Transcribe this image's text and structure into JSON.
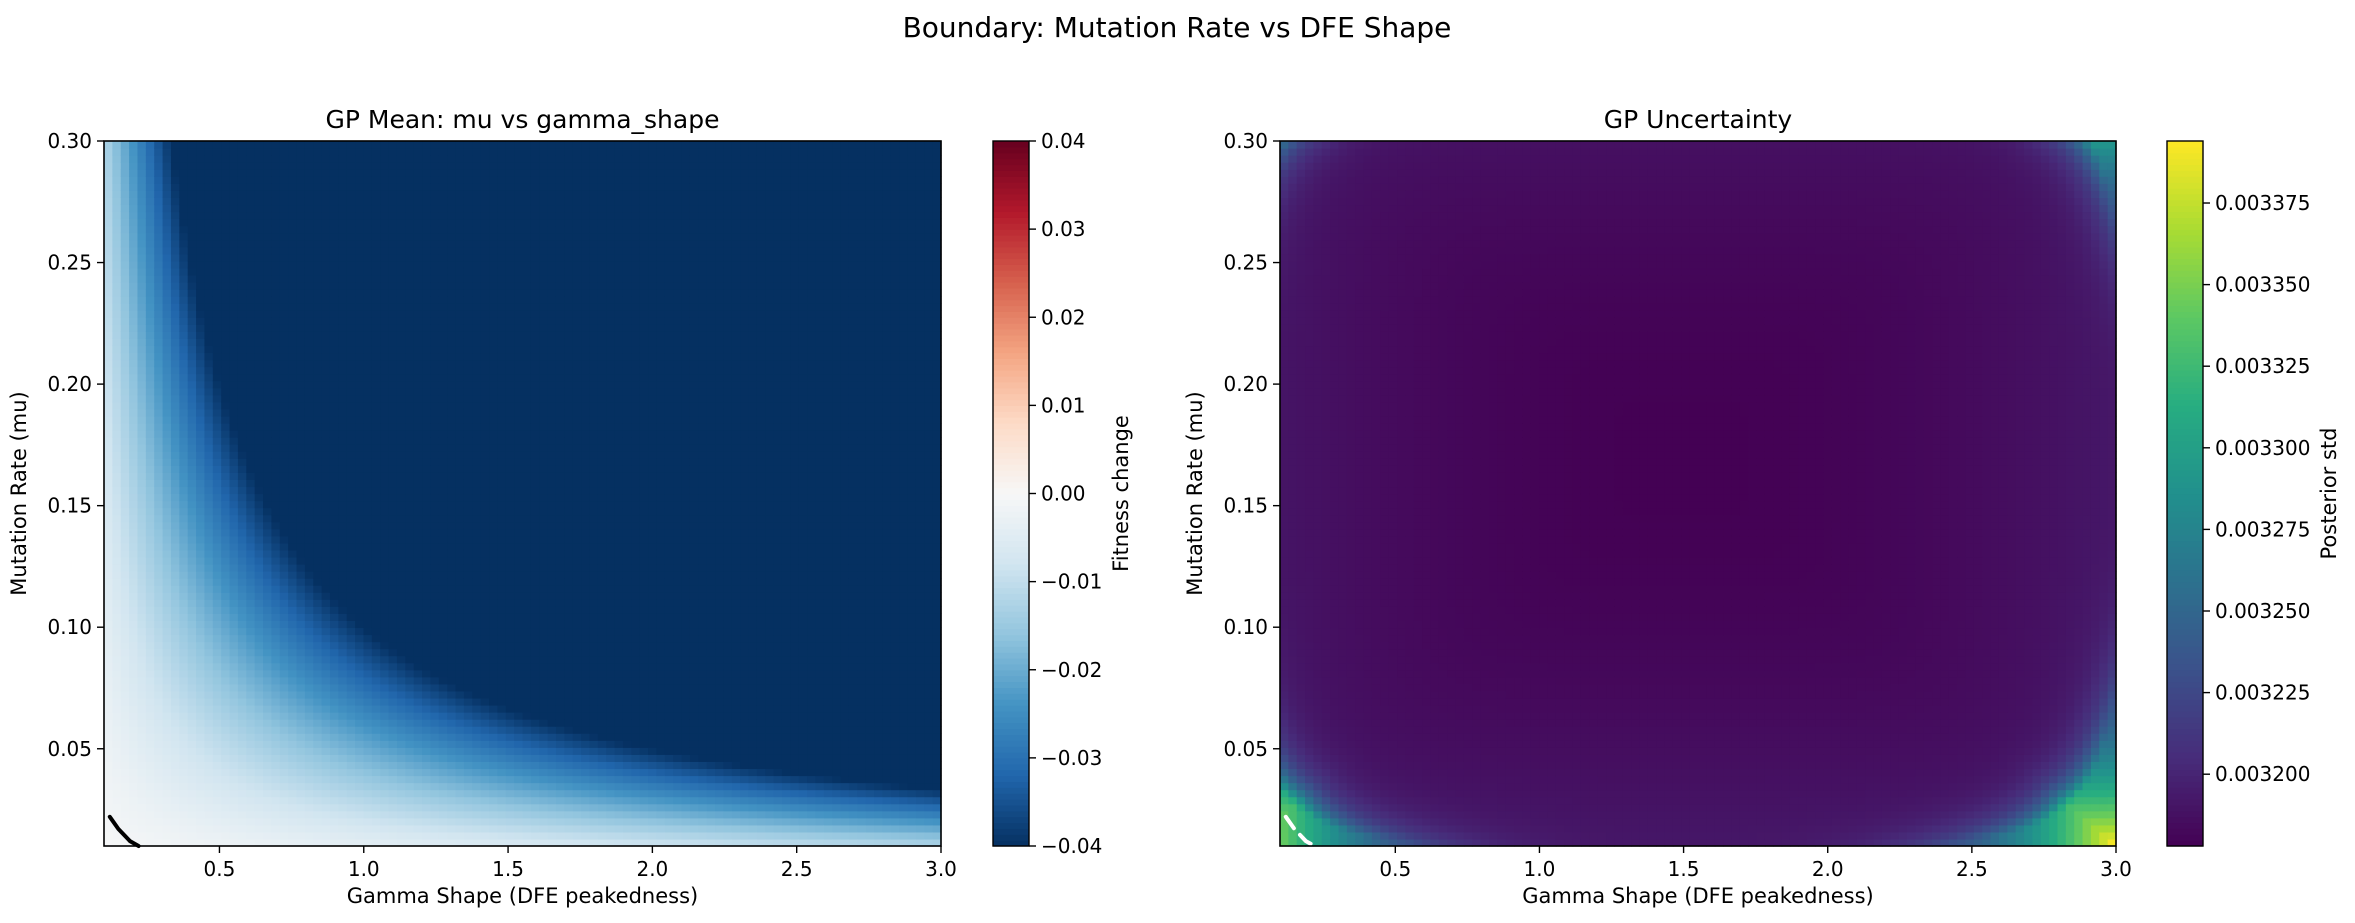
{
  "figure": {
    "title": "Boundary: Mutation Rate vs DFE Shape"
  },
  "chart_data": [
    {
      "type": "heatmap",
      "title": "GP Mean: mu vs gamma_shape",
      "xlabel": "Gamma Shape (DFE peakedness)",
      "ylabel": "Mutation Rate (mu)",
      "xlim": [
        0.1,
        3.0
      ],
      "ylim": [
        0.01,
        0.3
      ],
      "x_ticks": [
        0.5,
        1.0,
        1.5,
        2.0,
        2.5,
        3.0
      ],
      "x_tick_labels": [
        "0.5",
        "1.0",
        "1.5",
        "2.0",
        "2.5",
        "3.0"
      ],
      "y_ticks": [
        0.05,
        0.1,
        0.15,
        0.2,
        0.25,
        0.3
      ],
      "y_tick_labels": [
        "0.05",
        "0.10",
        "0.15",
        "0.20",
        "0.25",
        "0.30"
      ],
      "colormap": "RdBu_r",
      "colorbar": {
        "label": "Fitness change",
        "range": [
          -0.04,
          0.04
        ],
        "ticks": [
          -0.04,
          -0.03,
          -0.02,
          -0.01,
          0.0,
          0.01,
          0.02,
          0.03,
          0.04
        ],
        "tick_labels": [
          "−0.04",
          "−0.03",
          "−0.02",
          "−0.01",
          "0.00",
          "0.01",
          "0.02",
          "0.03",
          "0.04"
        ]
      },
      "value_model": "fitness change ≈ −0.4 · mu · gamma_shape (clipped at −0.04)",
      "contour": {
        "level": 0.0,
        "color": "#000000",
        "style": "solid",
        "points": [
          [
            0.12,
            0.022
          ],
          [
            0.15,
            0.017
          ],
          [
            0.19,
            0.012
          ],
          [
            0.22,
            0.01
          ]
        ]
      }
    },
    {
      "type": "heatmap",
      "title": "GP Uncertainty",
      "xlabel": "Gamma Shape (DFE peakedness)",
      "ylabel": "Mutation Rate (mu)",
      "xlim": [
        0.1,
        3.0
      ],
      "ylim": [
        0.01,
        0.3
      ],
      "x_ticks": [
        0.5,
        1.0,
        1.5,
        2.0,
        2.5,
        3.0
      ],
      "x_tick_labels": [
        "0.5",
        "1.0",
        "1.5",
        "2.0",
        "2.5",
        "3.0"
      ],
      "y_ticks": [
        0.05,
        0.1,
        0.15,
        0.2,
        0.25,
        0.3
      ],
      "y_tick_labels": [
        "0.05",
        "0.10",
        "0.15",
        "0.20",
        "0.25",
        "0.30"
      ],
      "colormap": "viridis",
      "colorbar": {
        "label": "Posterior std",
        "range": [
          0.003178,
          0.003394
        ],
        "ticks": [
          0.0032,
          0.003225,
          0.00325,
          0.003275,
          0.0033,
          0.003325,
          0.00335,
          0.003375
        ],
        "tick_labels": [
          "0.003200",
          "0.003225",
          "0.003250",
          "0.003275",
          "0.003300",
          "0.003325",
          "0.003350",
          "0.003375"
        ]
      },
      "value_model": "minimum ≈ 0.00318 near center (gamma_shape 1.5, mu 0.17), rising to ≈ 0.00339 at the corners",
      "contour": {
        "level": 0.0,
        "color": "#ffffff",
        "style": "dashed",
        "points": [
          [
            0.12,
            0.022
          ],
          [
            0.15,
            0.017
          ],
          [
            0.19,
            0.012
          ],
          [
            0.22,
            0.01
          ]
        ]
      }
    }
  ]
}
